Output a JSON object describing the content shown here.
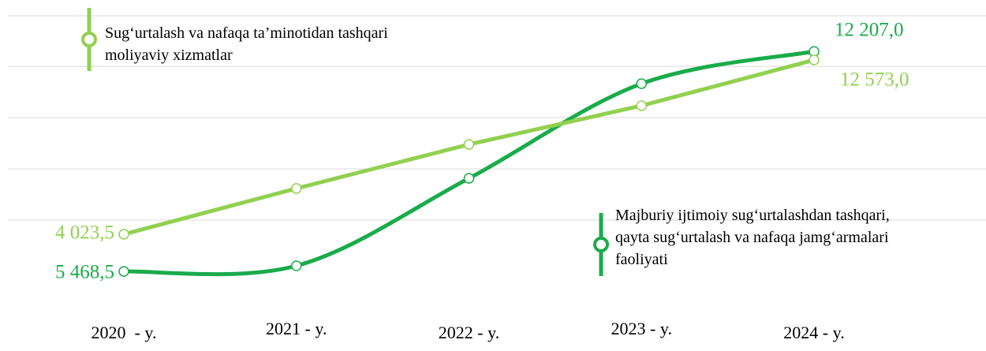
{
  "chart_data": {
    "type": "line",
    "categories": [
      "2020  - y.",
      "2021 - y.",
      "2022 - y.",
      "2023 - y.",
      "2024 - y."
    ],
    "series": [
      {
        "name": "Majburiy ijtimoiy sug‘urtalashdan tashqari,\nqayta sug‘urtalash va nafaqa jamg‘armalari\nfaoliyati",
        "color": "#1aab4b",
        "smooth": true,
        "values": [
          5468.5,
          5640,
          8320,
          11220,
          12207
        ],
        "value_labels": [
          "5 468,5",
          null,
          null,
          null,
          "12 207,0"
        ]
      },
      {
        "name": "Sug‘urtalash va nafaqa ta’minotidan tashqari\nmoliyaviy xizmatlar",
        "color": "#92d050",
        "smooth": false,
        "axis": "y2",
        "values": [
          4023.5,
          6270,
          8430,
          10330,
          12573
        ],
        "value_labels": [
          "4 023,5",
          null,
          null,
          null,
          "12 573,0"
        ]
      }
    ],
    "ylim": [
      3900,
      13300
    ],
    "yticks": [
      7040,
      8610,
      10180,
      11750,
      13300
    ],
    "y2lim": [
      -310,
      14740
    ],
    "grid": true
  }
}
